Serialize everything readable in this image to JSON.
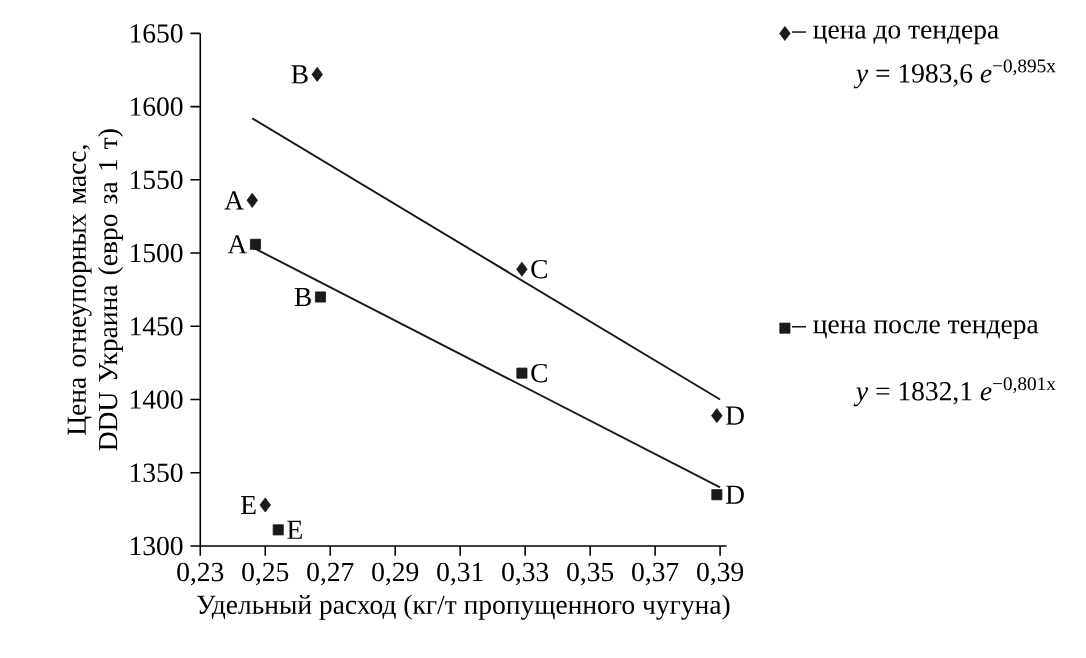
{
  "chart_data": {
    "type": "scatter",
    "xlabel": "Удельный расход (кг/т пропущенного чугуна)",
    "ylabel": "Цена огнеупорных масс, DDU Украина (евро за 1 т)",
    "xlim": [
      0.23,
      0.392
    ],
    "ylim": [
      1300,
      1650
    ],
    "xticks": [
      {
        "value": 0.23,
        "label": "0,23"
      },
      {
        "value": 0.25,
        "label": "0,25"
      },
      {
        "value": 0.27,
        "label": "0,27"
      },
      {
        "value": 0.29,
        "label": "0,29"
      },
      {
        "value": 0.31,
        "label": "0,31"
      },
      {
        "value": 0.33,
        "label": "0,33"
      },
      {
        "value": 0.35,
        "label": "0,35"
      },
      {
        "value": 0.37,
        "label": "0,37"
      },
      {
        "value": 0.39,
        "label": "0,39"
      }
    ],
    "yticks": [
      1300,
      1350,
      1400,
      1450,
      1500,
      1550,
      1600,
      1650
    ],
    "legend": "right",
    "series": [
      {
        "name": "– цена до тендера",
        "color": "#1a1a1a",
        "marker": "diamond",
        "x": [
          0.246,
          0.266,
          0.329,
          0.389,
          0.25
        ],
        "values": [
          1536,
          1622,
          1489,
          1389,
          1328
        ]
      },
      {
        "name": "– цена после тендера",
        "color": "#1a1a1a",
        "marker": "square",
        "x": [
          0.247,
          0.267,
          0.329,
          0.389,
          0.254
        ],
        "values": [
          1506,
          1470,
          1418,
          1335,
          1311
        ]
      },
      {
        "type": "line",
        "color": "#1a1a1a",
        "x": [
          0.246,
          0.39
        ],
        "values": [
          1592,
          1400
        ]
      },
      {
        "type": "line",
        "color": "#1a1a1a",
        "x": [
          0.246,
          0.39
        ],
        "values": [
          1504,
          1340
        ]
      }
    ],
    "annotations": [
      "*y* = 1983,6 *e*$^{−0,895x}$",
      "*y* = 1832,1 *e*$^{−0,801x}$",
      {
        "text": "A",
        "x": 0.246,
        "y": 1536
      },
      {
        "text": "B",
        "x": 0.266,
        "y": 1622
      },
      {
        "text": "C",
        "x": 0.329,
        "y": 1489
      },
      {
        "text": "D",
        "x": 0.389,
        "y": 1389
      },
      {
        "text": "E",
        "x": 0.25,
        "y": 1328
      },
      {
        "text": "A",
        "x": 0.247,
        "y": 1506
      },
      {
        "text": "B",
        "x": 0.267,
        "y": 1470
      },
      {
        "text": "C",
        "x": 0.329,
        "y": 1418
      },
      {
        "text": "D",
        "x": 0.389,
        "y": 1335
      },
      {
        "text": "E",
        "x": 0.254,
        "y": 1311
      }
    ]
  }
}
